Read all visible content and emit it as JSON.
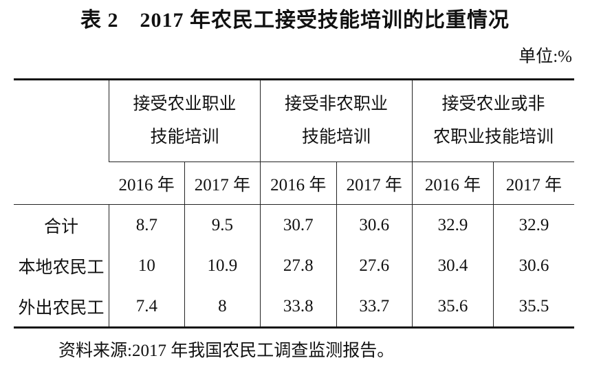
{
  "title": "表 2　2017 年农民工接受技能培训的比重情况",
  "unit": "单位:%",
  "table": {
    "groups": [
      [
        "接受农业职业",
        "技能培训"
      ],
      [
        "接受非农职业",
        "技能培训"
      ],
      [
        "接受农业或非",
        "农职业技能培训"
      ]
    ],
    "years": [
      "2016 年",
      "2017 年",
      "2016 年",
      "2017 年",
      "2016 年",
      "2017 年"
    ],
    "rows": [
      [
        "合计",
        "8.7",
        "9.5",
        "30.7",
        "30.6",
        "32.9",
        "32.9"
      ],
      [
        "本地农民工",
        "10",
        "10.9",
        "27.8",
        "27.6",
        "30.4",
        "30.6"
      ],
      [
        "外出农民工",
        "7.4",
        "8",
        "33.8",
        "33.7",
        "35.6",
        "35.5"
      ]
    ]
  },
  "source": "资料来源:2017 年我国农民工调查监测报告。"
}
